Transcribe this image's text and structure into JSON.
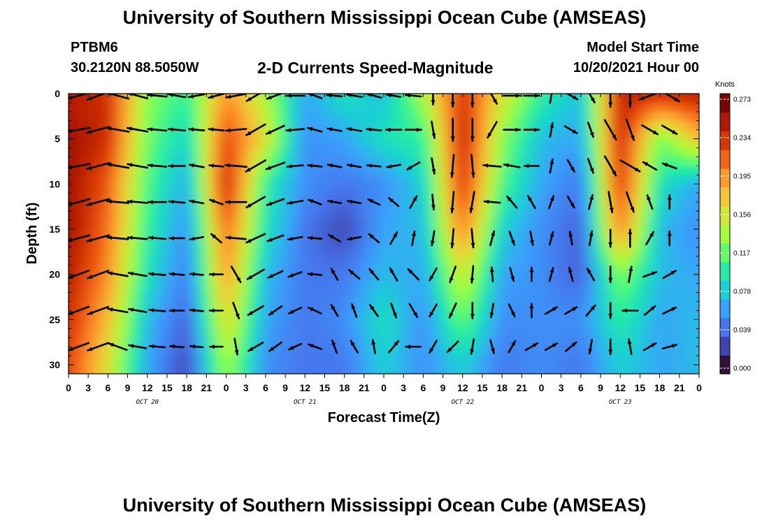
{
  "page": {
    "title_top": "University of Southern Mississippi Ocean Cube (AMSEAS)",
    "title_bottom": "University of Southern Mississippi Ocean Cube (AMSEAS)",
    "station": "PTBM6",
    "coords": "30.2120N  88.5050W",
    "model_start_label": "Model Start Time",
    "model_start_value": "10/20/2021 Hour 00"
  },
  "chart_data": {
    "type": "heatmap",
    "title": "2-D Currents Speed-Magnitude",
    "xlabel": "Forecast Time(Z)",
    "ylabel": "Depth (ft)",
    "x_tick_labels": [
      "0",
      "3",
      "6",
      "9",
      "12",
      "15",
      "18",
      "21",
      "0",
      "3",
      "6",
      "9",
      "12",
      "15",
      "18",
      "21",
      "0",
      "3",
      "6",
      "9",
      "12",
      "15",
      "18",
      "21",
      "0",
      "3",
      "6",
      "9",
      "12",
      "15",
      "18",
      "21",
      "0"
    ],
    "x_day_labels": [
      "OCT 20",
      "OCT 21",
      "OCT 22",
      "OCT 23"
    ],
    "y_tick_values": [
      0,
      5,
      10,
      15,
      20,
      25,
      30
    ],
    "ylim": [
      0,
      31
    ],
    "y_inverted": true,
    "xlim_hours": [
      0,
      96
    ],
    "colorbar": {
      "unit": "Knots",
      "ticks": [
        "0.273",
        "0.234",
        "0.195",
        "0.156",
        "0.117",
        "0.078",
        "0.039",
        "0.000"
      ],
      "range": [
        0.0,
        0.273
      ],
      "colors": [
        "#30123b",
        "#4145ab",
        "#4675ed",
        "#39a2fc",
        "#1bcfd4",
        "#24eca6",
        "#61fc6c",
        "#a4fc3b",
        "#d1e834",
        "#f3c63a",
        "#fe9b2d",
        "#f36315",
        "#d93806",
        "#b11901",
        "#7a0403"
      ]
    },
    "time_hours": [
      0,
      6,
      12,
      18,
      24,
      30,
      36,
      42,
      48,
      54,
      60,
      66,
      72,
      78,
      84,
      90,
      96
    ],
    "depth_levels_ft": [
      0,
      5,
      10,
      15,
      20,
      25,
      30
    ],
    "speed_knots": [
      [
        0.25,
        0.24,
        0.13,
        0.1,
        0.2,
        0.14,
        0.06,
        0.09,
        0.07,
        0.14,
        0.24,
        0.16,
        0.1,
        0.07,
        0.25,
        0.24,
        0.25
      ],
      [
        0.26,
        0.24,
        0.12,
        0.08,
        0.23,
        0.16,
        0.05,
        0.06,
        0.09,
        0.1,
        0.25,
        0.13,
        0.07,
        0.06,
        0.25,
        0.12,
        0.18
      ],
      [
        0.26,
        0.22,
        0.11,
        0.06,
        0.25,
        0.1,
        0.05,
        0.04,
        0.05,
        0.08,
        0.24,
        0.11,
        0.06,
        0.04,
        0.24,
        0.09,
        0.06
      ],
      [
        0.26,
        0.21,
        0.1,
        0.05,
        0.22,
        0.09,
        0.04,
        0.02,
        0.06,
        0.07,
        0.21,
        0.08,
        0.05,
        0.03,
        0.21,
        0.07,
        0.05
      ],
      [
        0.25,
        0.2,
        0.09,
        0.04,
        0.2,
        0.07,
        0.04,
        0.04,
        0.07,
        0.06,
        0.16,
        0.06,
        0.05,
        0.03,
        0.13,
        0.07,
        0.06
      ],
      [
        0.24,
        0.18,
        0.07,
        0.03,
        0.17,
        0.06,
        0.04,
        0.05,
        0.09,
        0.05,
        0.12,
        0.05,
        0.05,
        0.05,
        0.1,
        0.06,
        0.07
      ],
      [
        0.23,
        0.16,
        0.06,
        0.02,
        0.14,
        0.05,
        0.04,
        0.04,
        0.08,
        0.05,
        0.08,
        0.04,
        0.05,
        0.04,
        0.08,
        0.06,
        0.07
      ]
    ],
    "vector_grid": {
      "times_hours": [
        0,
        3,
        6,
        9,
        12,
        15,
        18,
        21,
        24,
        27,
        30,
        33,
        36,
        39,
        42,
        45,
        48,
        51,
        54,
        57,
        60,
        63,
        66,
        69,
        72,
        75,
        78,
        81,
        84,
        87,
        90
      ],
      "depths_ft": [
        0,
        4,
        8,
        12,
        16,
        20,
        24,
        28
      ],
      "direction_deg_note": "math convention, 0=east, counterclockwise",
      "directions": [
        [
          195,
          200,
          165,
          165,
          175,
          170,
          190,
          195,
          190,
          210,
          200,
          180,
          160,
          175,
          170,
          165,
          170,
          175,
          270,
          270,
          270,
          300,
          0,
          0,
          80,
          330,
          300,
          270,
          270,
          200,
          330
        ],
        [
          190,
          195,
          170,
          170,
          175,
          175,
          175,
          175,
          185,
          210,
          205,
          185,
          165,
          170,
          170,
          175,
          180,
          0,
          280,
          270,
          270,
          240,
          0,
          0,
          80,
          330,
          290,
          300,
          290,
          330,
          330
        ],
        [
          190,
          195,
          170,
          170,
          175,
          180,
          170,
          175,
          175,
          210,
          200,
          185,
          175,
          170,
          170,
          175,
          190,
          210,
          280,
          265,
          275,
          175,
          170,
          180,
          80,
          300,
          290,
          300,
          330,
          150,
          160
        ],
        [
          195,
          195,
          175,
          175,
          180,
          175,
          170,
          160,
          180,
          210,
          200,
          190,
          160,
          170,
          170,
          155,
          140,
          60,
          275,
          265,
          260,
          175,
          130,
          120,
          70,
          300,
          75,
          280,
          290,
          110,
          90
        ],
        [
          195,
          195,
          175,
          175,
          175,
          180,
          190,
          140,
          175,
          205,
          200,
          190,
          175,
          150,
          190,
          140,
          60,
          80,
          260,
          265,
          275,
          75,
          290,
          280,
          75,
          100,
          80,
          270,
          90,
          60,
          90
        ],
        [
          200,
          200,
          170,
          170,
          175,
          175,
          175,
          180,
          300,
          210,
          205,
          200,
          175,
          120,
          140,
          130,
          120,
          135,
          240,
          250,
          265,
          95,
          285,
          90,
          75,
          105,
          120,
          270,
          80,
          20,
          30
        ],
        [
          200,
          200,
          170,
          170,
          175,
          180,
          175,
          180,
          290,
          210,
          215,
          205,
          155,
          120,
          110,
          125,
          290,
          300,
          240,
          245,
          270,
          260,
          295,
          90,
          30,
          30,
          50,
          270,
          180,
          40,
          25
        ],
        [
          200,
          200,
          160,
          170,
          175,
          175,
          175,
          180,
          280,
          210,
          215,
          205,
          160,
          110,
          120,
          100,
          50,
          180,
          240,
          225,
          260,
          285,
          60,
          30,
          30,
          40,
          260,
          270,
          100,
          30,
          15
        ]
      ],
      "magnitudes": [
        [
          0.25,
          0.25,
          0.24,
          0.2,
          0.16,
          0.13,
          0.1,
          0.1,
          0.19,
          0.21,
          0.15,
          0.12,
          0.07,
          0.08,
          0.09,
          0.08,
          0.06,
          0.09,
          0.14,
          0.23,
          0.24,
          0.16,
          0.12,
          0.09,
          0.07,
          0.08,
          0.1,
          0.24,
          0.24,
          0.24,
          0.25
        ],
        [
          0.26,
          0.26,
          0.24,
          0.2,
          0.16,
          0.12,
          0.09,
          0.08,
          0.2,
          0.23,
          0.18,
          0.14,
          0.07,
          0.06,
          0.07,
          0.07,
          0.09,
          0.1,
          0.12,
          0.24,
          0.24,
          0.15,
          0.11,
          0.08,
          0.06,
          0.06,
          0.09,
          0.25,
          0.24,
          0.15,
          0.12
        ],
        [
          0.26,
          0.26,
          0.23,
          0.19,
          0.15,
          0.11,
          0.07,
          0.06,
          0.22,
          0.25,
          0.18,
          0.1,
          0.06,
          0.05,
          0.05,
          0.05,
          0.05,
          0.07,
          0.1,
          0.24,
          0.24,
          0.14,
          0.1,
          0.07,
          0.05,
          0.05,
          0.08,
          0.24,
          0.24,
          0.09,
          0.07
        ],
        [
          0.26,
          0.26,
          0.22,
          0.18,
          0.14,
          0.1,
          0.06,
          0.05,
          0.2,
          0.22,
          0.14,
          0.09,
          0.05,
          0.04,
          0.04,
          0.03,
          0.03,
          0.05,
          0.08,
          0.21,
          0.21,
          0.1,
          0.08,
          0.06,
          0.04,
          0.04,
          0.07,
          0.21,
          0.21,
          0.07,
          0.05
        ],
        [
          0.25,
          0.25,
          0.21,
          0.17,
          0.13,
          0.08,
          0.05,
          0.04,
          0.18,
          0.2,
          0.12,
          0.07,
          0.05,
          0.04,
          0.04,
          0.04,
          0.05,
          0.06,
          0.07,
          0.16,
          0.16,
          0.07,
          0.06,
          0.05,
          0.04,
          0.04,
          0.06,
          0.13,
          0.13,
          0.07,
          0.06
        ],
        [
          0.24,
          0.24,
          0.19,
          0.15,
          0.11,
          0.07,
          0.04,
          0.04,
          0.15,
          0.17,
          0.1,
          0.06,
          0.05,
          0.04,
          0.05,
          0.05,
          0.07,
          0.08,
          0.06,
          0.12,
          0.12,
          0.06,
          0.05,
          0.05,
          0.05,
          0.05,
          0.05,
          0.1,
          0.1,
          0.06,
          0.07
        ],
        [
          0.24,
          0.23,
          0.18,
          0.14,
          0.1,
          0.06,
          0.04,
          0.04,
          0.12,
          0.14,
          0.09,
          0.05,
          0.05,
          0.04,
          0.05,
          0.05,
          0.08,
          0.09,
          0.06,
          0.1,
          0.1,
          0.05,
          0.05,
          0.05,
          0.05,
          0.05,
          0.05,
          0.09,
          0.09,
          0.06,
          0.07
        ],
        [
          0.23,
          0.23,
          0.17,
          0.13,
          0.09,
          0.05,
          0.03,
          0.03,
          0.11,
          0.12,
          0.08,
          0.05,
          0.05,
          0.04,
          0.05,
          0.05,
          0.08,
          0.08,
          0.06,
          0.08,
          0.08,
          0.05,
          0.04,
          0.05,
          0.05,
          0.05,
          0.06,
          0.08,
          0.08,
          0.06,
          0.07
        ]
      ]
    }
  }
}
